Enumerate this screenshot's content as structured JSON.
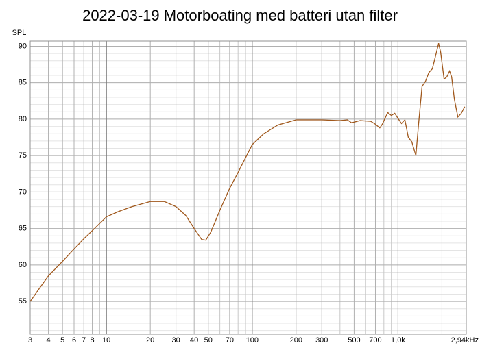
{
  "chart_data": {
    "type": "line",
    "title": "2022-03-19 Motorboating med batteri utan filter",
    "y_label": "SPL",
    "log_x": true,
    "grid": true,
    "color": "#a0581c",
    "xlim": [
      3,
      2940
    ],
    "ylim": [
      50.5,
      90.7
    ],
    "xticks": [
      3,
      4,
      5,
      6,
      7,
      8,
      10,
      20,
      30,
      40,
      50,
      70,
      100,
      200,
      300,
      500,
      700,
      {
        "value": 1000,
        "label": "1,0k"
      },
      {
        "value": 2940,
        "label": "2,94kHz"
      }
    ],
    "x_minor_ticks": [
      9,
      60,
      80,
      90,
      400,
      600,
      800,
      900,
      2000
    ],
    "x_major_lines": [
      10,
      100,
      1000
    ],
    "yticks": [
      55,
      60,
      65,
      70,
      75,
      80,
      85,
      90
    ],
    "y_minor_step": 1,
    "x": [
      3,
      3.5,
      4,
      5,
      6,
      7,
      8,
      10,
      12,
      15,
      20,
      25,
      30,
      35,
      40,
      45,
      48,
      52,
      60,
      70,
      80,
      100,
      120,
      150,
      200,
      300,
      400,
      450,
      480,
      550,
      650,
      700,
      750,
      780,
      850,
      900,
      950,
      1000,
      1056,
      1115,
      1177,
      1243,
      1326,
      1385,
      1462,
      1544,
      1630,
      1720,
      1816,
      1899,
      1960,
      2070,
      2162,
      2258,
      2333,
      2437,
      2574,
      2717,
      2868
    ],
    "values": [
      55.0,
      56.9,
      58.5,
      60.5,
      62.2,
      63.6,
      64.7,
      66.6,
      67.3,
      68.0,
      68.7,
      68.7,
      68.0,
      66.8,
      65.0,
      63.5,
      63.4,
      64.5,
      67.5,
      70.5,
      72.7,
      76.5,
      78.0,
      79.2,
      79.9,
      79.9,
      79.8,
      79.9,
      79.5,
      79.8,
      79.7,
      79.3,
      78.8,
      79.3,
      80.9,
      80.5,
      80.8,
      80.1,
      79.4,
      79.9,
      77.5,
      76.9,
      75.0,
      79.4,
      84.5,
      85.2,
      86.4,
      86.9,
      88.8,
      90.4,
      89.2,
      85.5,
      85.8,
      86.6,
      85.8,
      82.7,
      80.3,
      80.8,
      81.7
    ]
  }
}
